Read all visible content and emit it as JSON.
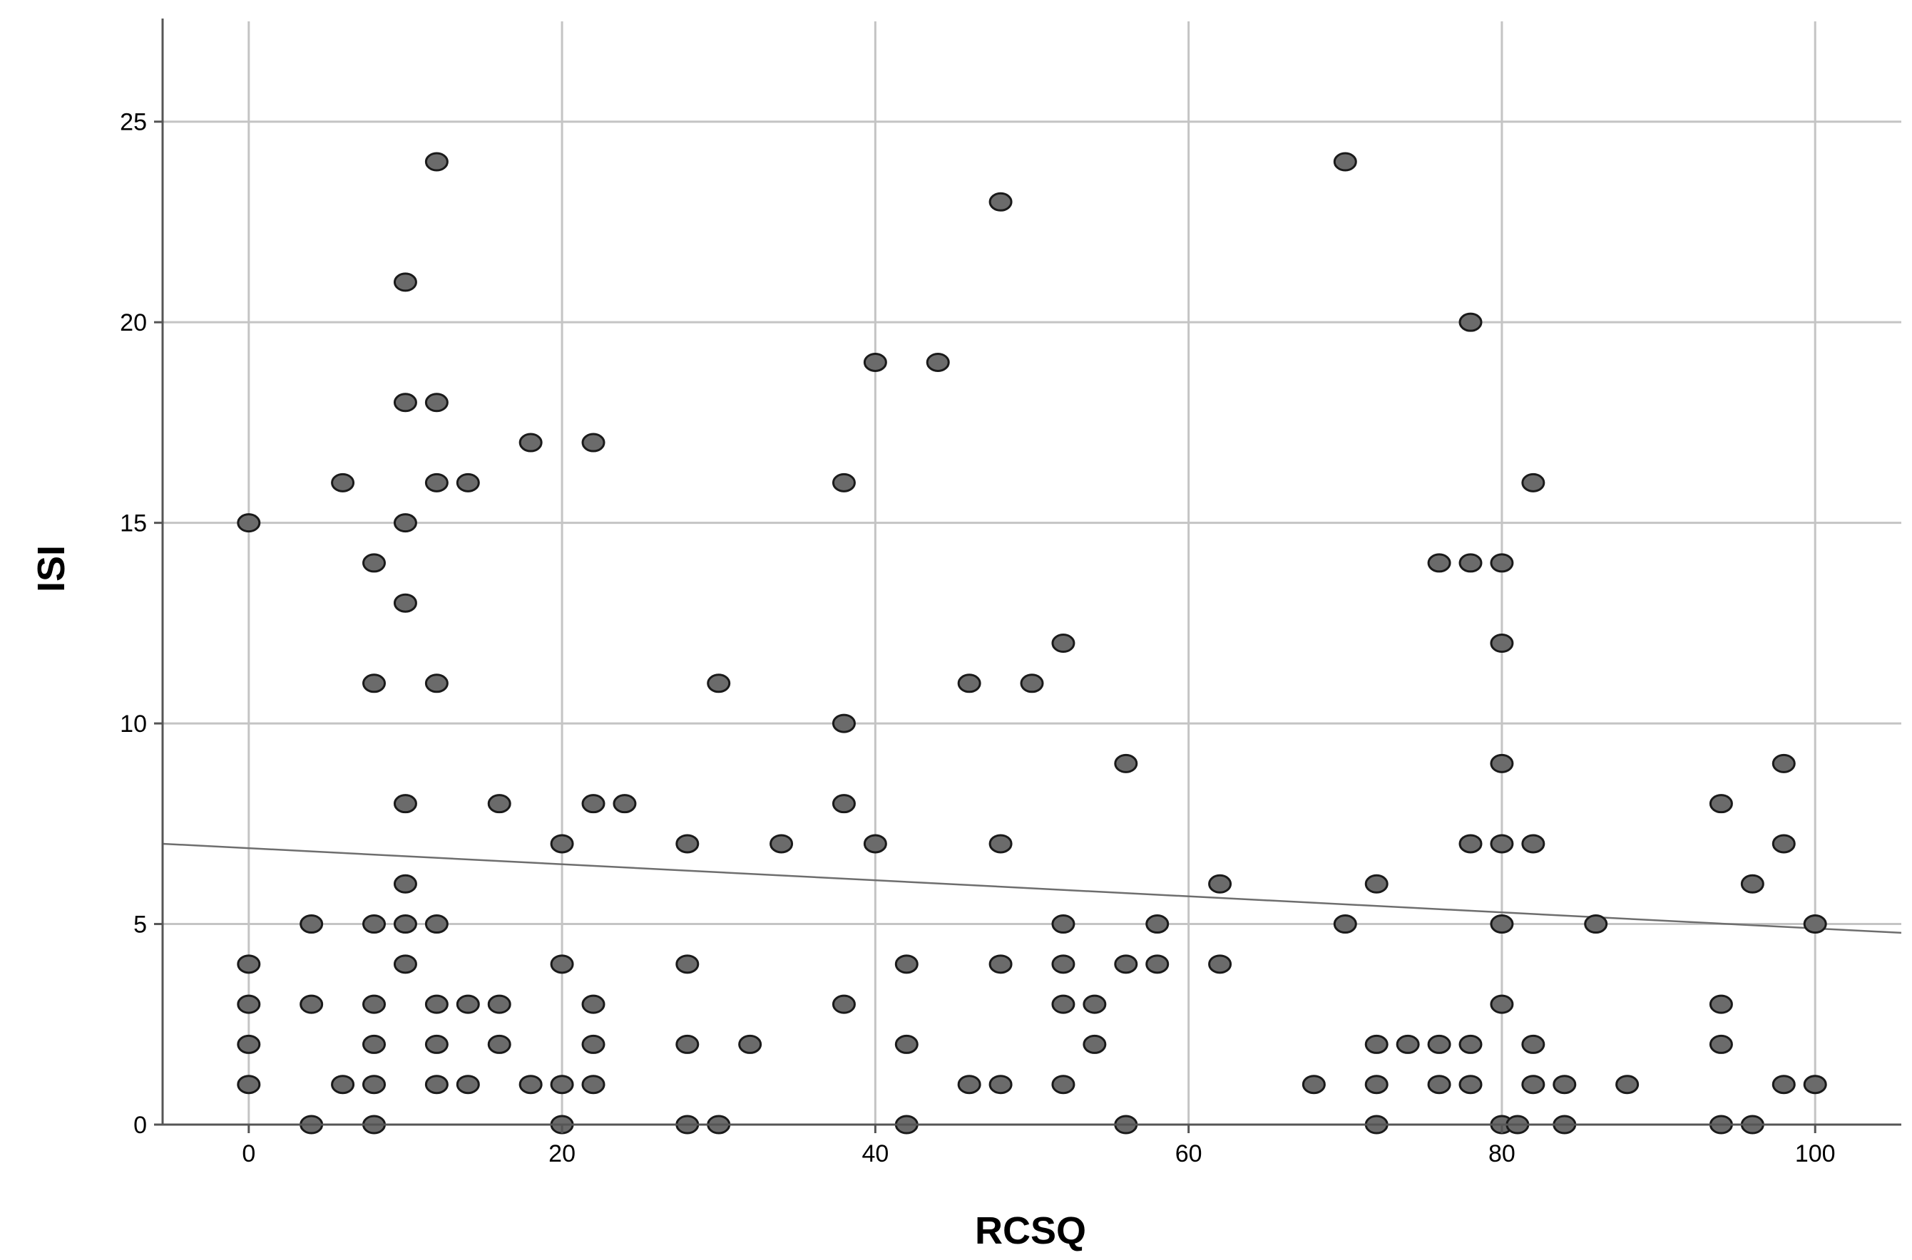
{
  "chart_data": {
    "type": "scatter",
    "xlabel": "RCSQ",
    "ylabel": "ISI",
    "xlim": [
      -5.5,
      105.5
    ],
    "ylim": [
      0,
      27.5
    ],
    "xticks": [
      "0",
      "20",
      "40",
      "60",
      "80",
      "100"
    ],
    "yticks": [
      "0",
      "5",
      "10",
      "15",
      "20",
      "25"
    ],
    "grid": true,
    "fit_line": {
      "x": [
        -5.5,
        105.5
      ],
      "y": [
        7.0,
        4.78
      ]
    },
    "colors": {
      "point_fill": "#6b6b6b",
      "point_stroke": "#1a1a1a",
      "grid": "#c4c4c4",
      "fit_line": "#6e6e6e"
    },
    "points": [
      [
        0,
        15
      ],
      [
        0,
        4
      ],
      [
        0,
        3
      ],
      [
        0,
        2
      ],
      [
        0,
        1
      ],
      [
        4,
        5
      ],
      [
        4,
        3
      ],
      [
        4,
        0
      ],
      [
        6,
        16
      ],
      [
        6,
        1
      ],
      [
        8,
        14
      ],
      [
        8,
        11
      ],
      [
        8,
        5
      ],
      [
        8,
        3
      ],
      [
        8,
        2
      ],
      [
        8,
        1
      ],
      [
        8,
        0
      ],
      [
        10,
        21
      ],
      [
        10,
        18
      ],
      [
        10,
        15
      ],
      [
        10,
        13
      ],
      [
        10,
        8
      ],
      [
        10,
        6
      ],
      [
        10,
        5
      ],
      [
        10,
        4
      ],
      [
        12,
        24
      ],
      [
        12,
        18
      ],
      [
        12,
        16
      ],
      [
        12,
        11
      ],
      [
        12,
        5
      ],
      [
        12,
        3
      ],
      [
        12,
        2
      ],
      [
        12,
        1
      ],
      [
        14,
        16
      ],
      [
        14,
        3
      ],
      [
        14,
        1
      ],
      [
        16,
        8
      ],
      [
        16,
        3
      ],
      [
        16,
        2
      ],
      [
        18,
        17
      ],
      [
        18,
        1
      ],
      [
        20,
        7
      ],
      [
        20,
        4
      ],
      [
        20,
        1
      ],
      [
        20,
        0
      ],
      [
        22,
        17
      ],
      [
        22,
        8
      ],
      [
        22,
        3
      ],
      [
        22,
        2
      ],
      [
        22,
        1
      ],
      [
        24,
        8
      ],
      [
        28,
        7
      ],
      [
        28,
        4
      ],
      [
        28,
        2
      ],
      [
        28,
        0
      ],
      [
        30,
        11
      ],
      [
        30,
        0
      ],
      [
        32,
        2
      ],
      [
        34,
        7
      ],
      [
        38,
        16
      ],
      [
        38,
        10
      ],
      [
        38,
        8
      ],
      [
        38,
        3
      ],
      [
        40,
        19
      ],
      [
        40,
        7
      ],
      [
        42,
        4
      ],
      [
        42,
        2
      ],
      [
        42,
        0
      ],
      [
        44,
        19
      ],
      [
        46,
        11
      ],
      [
        46,
        1
      ],
      [
        48,
        23
      ],
      [
        48,
        7
      ],
      [
        48,
        4
      ],
      [
        48,
        1
      ],
      [
        50,
        11
      ],
      [
        52,
        12
      ],
      [
        52,
        5
      ],
      [
        52,
        4
      ],
      [
        52,
        3
      ],
      [
        52,
        1
      ],
      [
        54,
        3
      ],
      [
        54,
        2
      ],
      [
        56,
        9
      ],
      [
        56,
        4
      ],
      [
        56,
        0
      ],
      [
        58,
        5
      ],
      [
        58,
        4
      ],
      [
        62,
        6
      ],
      [
        62,
        4
      ],
      [
        68,
        1
      ],
      [
        70,
        24
      ],
      [
        70,
        5
      ],
      [
        72,
        6
      ],
      [
        72,
        2
      ],
      [
        72,
        1
      ],
      [
        72,
        0
      ],
      [
        74,
        2
      ],
      [
        76,
        14
      ],
      [
        76,
        2
      ],
      [
        76,
        1
      ],
      [
        78,
        20
      ],
      [
        78,
        14
      ],
      [
        78,
        7
      ],
      [
        78,
        2
      ],
      [
        78,
        1
      ],
      [
        80,
        14
      ],
      [
        80,
        12
      ],
      [
        80,
        9
      ],
      [
        80,
        7
      ],
      [
        80,
        5
      ],
      [
        80,
        3
      ],
      [
        80,
        0
      ],
      [
        81,
        0
      ],
      [
        82,
        16
      ],
      [
        82,
        7
      ],
      [
        82,
        2
      ],
      [
        82,
        1
      ],
      [
        84,
        1
      ],
      [
        84,
        0
      ],
      [
        86,
        5
      ],
      [
        88,
        1
      ],
      [
        94,
        8
      ],
      [
        94,
        3
      ],
      [
        94,
        2
      ],
      [
        94,
        0
      ],
      [
        96,
        6
      ],
      [
        96,
        0
      ],
      [
        98,
        9
      ],
      [
        98,
        7
      ],
      [
        98,
        1
      ],
      [
        100,
        5
      ],
      [
        100,
        1
      ]
    ]
  }
}
